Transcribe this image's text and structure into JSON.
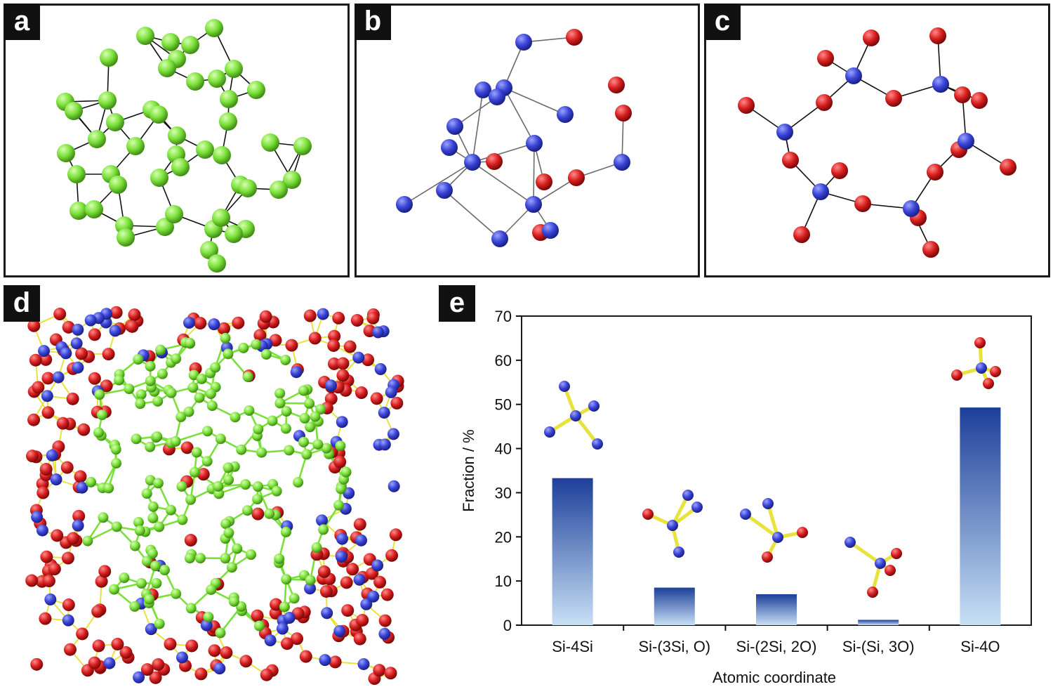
{
  "panels": {
    "a": {
      "label": "a"
    },
    "b": {
      "label": "b"
    },
    "c": {
      "label": "c"
    },
    "d": {
      "label": "d"
    },
    "e": {
      "label": "e"
    }
  },
  "colors": {
    "si_cluster": "#7be03a",
    "si": "#3a44d6",
    "o": "#d81f1f",
    "bond_yellow": "#e8e23c",
    "bond_green": "#7be03a",
    "bar_top": "#1d3f9a",
    "bar_bottom": "#c8e0f5"
  },
  "chart_data": {
    "type": "bar",
    "categories": [
      "Si-4Si",
      "Si-(3Si, O)",
      "Si-(2Si, 2O)",
      "Si-(Si, 3O)",
      "Si-4O"
    ],
    "values": [
      33.3,
      8.5,
      7.0,
      1.2,
      49.3
    ],
    "xlabel": "Atomic coordinate",
    "ylabel": "Fraction / %",
    "ylim": [
      0,
      70
    ],
    "yticks": [
      0,
      10,
      20,
      30,
      40,
      50,
      60,
      70
    ],
    "grid": false
  }
}
